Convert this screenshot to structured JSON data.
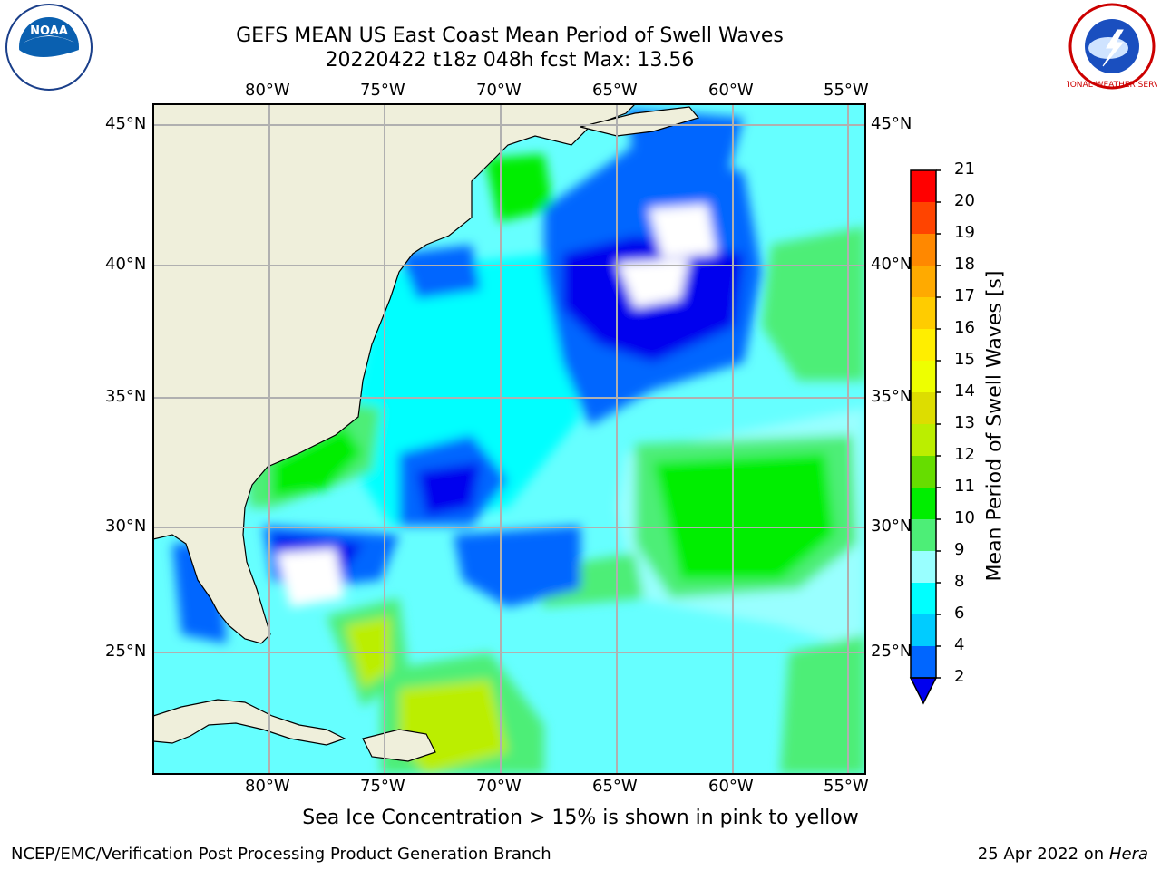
{
  "title": {
    "line1": "GEFS MEAN US East Coast Mean Period of Swell Waves",
    "line2": "20220422 t18z 048h fcst   Max: 13.56"
  },
  "logos": {
    "left": "NOAA",
    "right": "NATIONAL WEATHER SERVICE"
  },
  "map": {
    "lon_labels": [
      "80°W",
      "75°W",
      "70°W",
      "65°W",
      "60°W",
      "55°W"
    ],
    "lat_labels": [
      "45°N",
      "40°N",
      "35°N",
      "30°N",
      "25°N"
    ],
    "lon_range": [
      -85,
      -55
    ],
    "lat_range": [
      20.5,
      46
    ],
    "land_color": "#efefdb",
    "grid": true
  },
  "colorbar": {
    "title": "Mean Period of Swell Waves [s]",
    "ticks": [
      "2",
      "4",
      "6",
      "8",
      "9",
      "10",
      "11",
      "12",
      "13",
      "14",
      "15",
      "16",
      "17",
      "18",
      "19",
      "20",
      "21"
    ],
    "colors": [
      "#0066ff",
      "#00ccff",
      "#00ffff",
      "#99ffff",
      "#4dee77",
      "#00ee00",
      "#66dd00",
      "#bbee00",
      "#dddd00",
      "#eeff00",
      "#ffee00",
      "#ffcc00",
      "#ffaa00",
      "#ff8800",
      "#ff4400",
      "#ff0000"
    ],
    "underflow_color": "#0000ee"
  },
  "caption": "Sea Ice Concentration > 15% is shown in pink to yellow",
  "footer": {
    "left": "NCEP/EMC/Verification Post Processing Product Generation Branch",
    "date": "25 Apr 2022 on ",
    "machine": "Hera"
  }
}
